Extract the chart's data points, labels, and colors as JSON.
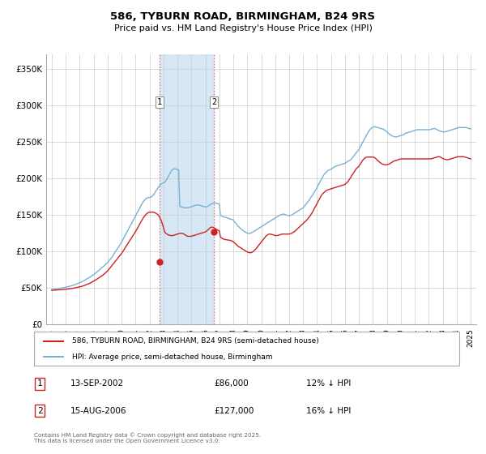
{
  "title": "586, TYBURN ROAD, BIRMINGHAM, B24 9RS",
  "subtitle": "Price paid vs. HM Land Registry's House Price Index (HPI)",
  "hpi_color": "#7ab0d4",
  "price_color": "#cc2222",
  "shaded_color": "#d6e8f5",
  "marker1_x": 2002.72,
  "marker2_x": 2006.62,
  "marker1_y": 86000,
  "marker2_y": 127000,
  "ylim": [
    0,
    370000
  ],
  "xlim": [
    1994.6,
    2025.4
  ],
  "yticks": [
    0,
    50000,
    100000,
    150000,
    200000,
    250000,
    300000,
    350000
  ],
  "ytick_labels": [
    "£0",
    "£50K",
    "£100K",
    "£150K",
    "£200K",
    "£250K",
    "£300K",
    "£350K"
  ],
  "xtick_years": [
    1995,
    1996,
    1997,
    1998,
    1999,
    2000,
    2001,
    2002,
    2003,
    2004,
    2005,
    2006,
    2007,
    2008,
    2009,
    2010,
    2011,
    2012,
    2013,
    2014,
    2015,
    2016,
    2017,
    2018,
    2019,
    2020,
    2021,
    2022,
    2023,
    2024,
    2025
  ],
  "legend_label_price": "586, TYBURN ROAD, BIRMINGHAM, B24 9RS (semi-detached house)",
  "legend_label_hpi": "HPI: Average price, semi-detached house, Birmingham",
  "footer": "Contains HM Land Registry data © Crown copyright and database right 2025.\nThis data is licensed under the Open Government Licence v3.0.",
  "table_rows": [
    {
      "label": "1",
      "date": "13-SEP-2002",
      "price": "£86,000",
      "hpi": "12% ↓ HPI"
    },
    {
      "label": "2",
      "date": "15-AUG-2006",
      "price": "£127,000",
      "hpi": "16% ↓ HPI"
    }
  ],
  "hpi_data_x": [
    1995.0,
    1995.08,
    1995.17,
    1995.25,
    1995.33,
    1995.42,
    1995.5,
    1995.58,
    1995.67,
    1995.75,
    1995.83,
    1995.92,
    1996.0,
    1996.08,
    1996.17,
    1996.25,
    1996.33,
    1996.42,
    1996.5,
    1996.58,
    1996.67,
    1996.75,
    1996.83,
    1996.92,
    1997.0,
    1997.08,
    1997.17,
    1997.25,
    1997.33,
    1997.42,
    1997.5,
    1997.58,
    1997.67,
    1997.75,
    1997.83,
    1997.92,
    1998.0,
    1998.08,
    1998.17,
    1998.25,
    1998.33,
    1998.42,
    1998.5,
    1998.58,
    1998.67,
    1998.75,
    1998.83,
    1998.92,
    1999.0,
    1999.08,
    1999.17,
    1999.25,
    1999.33,
    1999.42,
    1999.5,
    1999.58,
    1999.67,
    1999.75,
    1999.83,
    1999.92,
    2000.0,
    2000.08,
    2000.17,
    2000.25,
    2000.33,
    2000.42,
    2000.5,
    2000.58,
    2000.67,
    2000.75,
    2000.83,
    2000.92,
    2001.0,
    2001.08,
    2001.17,
    2001.25,
    2001.33,
    2001.42,
    2001.5,
    2001.58,
    2001.67,
    2001.75,
    2001.83,
    2001.92,
    2002.0,
    2002.08,
    2002.17,
    2002.25,
    2002.33,
    2002.42,
    2002.5,
    2002.58,
    2002.67,
    2002.75,
    2002.83,
    2002.92,
    2003.0,
    2003.08,
    2003.17,
    2003.25,
    2003.33,
    2003.42,
    2003.5,
    2003.58,
    2003.67,
    2003.75,
    2003.83,
    2003.92,
    2004.0,
    2004.08,
    2004.17,
    2004.25,
    2004.33,
    2004.42,
    2004.5,
    2004.58,
    2004.67,
    2004.75,
    2004.83,
    2004.92,
    2005.0,
    2005.08,
    2005.17,
    2005.25,
    2005.33,
    2005.42,
    2005.5,
    2005.58,
    2005.67,
    2005.75,
    2005.83,
    2005.92,
    2006.0,
    2006.08,
    2006.17,
    2006.25,
    2006.33,
    2006.42,
    2006.5,
    2006.58,
    2006.67,
    2006.75,
    2006.83,
    2006.92,
    2007.0,
    2007.08,
    2007.17,
    2007.25,
    2007.33,
    2007.42,
    2007.5,
    2007.58,
    2007.67,
    2007.75,
    2007.83,
    2007.92,
    2008.0,
    2008.08,
    2008.17,
    2008.25,
    2008.33,
    2008.42,
    2008.5,
    2008.58,
    2008.67,
    2008.75,
    2008.83,
    2008.92,
    2009.0,
    2009.08,
    2009.17,
    2009.25,
    2009.33,
    2009.42,
    2009.5,
    2009.58,
    2009.67,
    2009.75,
    2009.83,
    2009.92,
    2010.0,
    2010.08,
    2010.17,
    2010.25,
    2010.33,
    2010.42,
    2010.5,
    2010.58,
    2010.67,
    2010.75,
    2010.83,
    2010.92,
    2011.0,
    2011.08,
    2011.17,
    2011.25,
    2011.33,
    2011.42,
    2011.5,
    2011.58,
    2011.67,
    2011.75,
    2011.83,
    2011.92,
    2012.0,
    2012.08,
    2012.17,
    2012.25,
    2012.33,
    2012.42,
    2012.5,
    2012.58,
    2012.67,
    2012.75,
    2012.83,
    2012.92,
    2013.0,
    2013.08,
    2013.17,
    2013.25,
    2013.33,
    2013.42,
    2013.5,
    2013.58,
    2013.67,
    2013.75,
    2013.83,
    2013.92,
    2014.0,
    2014.08,
    2014.17,
    2014.25,
    2014.33,
    2014.42,
    2014.5,
    2014.58,
    2014.67,
    2014.75,
    2014.83,
    2014.92,
    2015.0,
    2015.08,
    2015.17,
    2015.25,
    2015.33,
    2015.42,
    2015.5,
    2015.58,
    2015.67,
    2015.75,
    2015.83,
    2015.92,
    2016.0,
    2016.08,
    2016.17,
    2016.25,
    2016.33,
    2016.42,
    2016.5,
    2016.58,
    2016.67,
    2016.75,
    2016.83,
    2016.92,
    2017.0,
    2017.08,
    2017.17,
    2017.25,
    2017.33,
    2017.42,
    2017.5,
    2017.58,
    2017.67,
    2017.75,
    2017.83,
    2017.92,
    2018.0,
    2018.08,
    2018.17,
    2018.25,
    2018.33,
    2018.42,
    2018.5,
    2018.58,
    2018.67,
    2018.75,
    2018.83,
    2018.92,
    2019.0,
    2019.08,
    2019.17,
    2019.25,
    2019.33,
    2019.42,
    2019.5,
    2019.58,
    2019.67,
    2019.75,
    2019.83,
    2019.92,
    2020.0,
    2020.08,
    2020.17,
    2020.25,
    2020.33,
    2020.42,
    2020.5,
    2020.58,
    2020.67,
    2020.75,
    2020.83,
    2020.92,
    2021.0,
    2021.08,
    2021.17,
    2021.25,
    2021.33,
    2021.42,
    2021.5,
    2021.58,
    2021.67,
    2021.75,
    2021.83,
    2021.92,
    2022.0,
    2022.08,
    2022.17,
    2022.25,
    2022.33,
    2022.42,
    2022.5,
    2022.58,
    2022.67,
    2022.75,
    2022.83,
    2022.92,
    2023.0,
    2023.08,
    2023.17,
    2023.25,
    2023.33,
    2023.42,
    2023.5,
    2023.58,
    2023.67,
    2023.75,
    2023.83,
    2023.92,
    2024.0,
    2024.08,
    2024.17,
    2024.25,
    2024.33,
    2024.42,
    2024.5,
    2024.58,
    2024.67,
    2024.75,
    2024.83,
    2024.92,
    2025.0
  ],
  "hpi_data_y": [
    48000,
    48200,
    48400,
    48600,
    48800,
    49000,
    49300,
    49600,
    49900,
    50200,
    50500,
    50800,
    51200,
    51600,
    52000,
    52400,
    52800,
    53300,
    53800,
    54300,
    54800,
    55400,
    56000,
    56600,
    57300,
    58000,
    58800,
    59600,
    60500,
    61400,
    62300,
    63300,
    64300,
    65300,
    66300,
    67400,
    68500,
    69700,
    71000,
    72300,
    73600,
    75000,
    76400,
    77800,
    79200,
    80600,
    82000,
    83500,
    85000,
    87000,
    89000,
    91000,
    93000,
    95500,
    98000,
    100500,
    103000,
    105500,
    108000,
    110500,
    113000,
    116000,
    119000,
    122000,
    125000,
    128000,
    131000,
    134000,
    137000,
    140000,
    143000,
    146000,
    149000,
    152000,
    155000,
    158000,
    161000,
    164000,
    167000,
    169000,
    171000,
    172500,
    173500,
    174000,
    174000,
    174500,
    175500,
    177000,
    179000,
    181500,
    184000,
    186500,
    189000,
    191000,
    192500,
    193500,
    194000,
    195000,
    197000,
    199500,
    202500,
    205500,
    208500,
    211000,
    212500,
    213500,
    213500,
    213000,
    212500,
    212000,
    162000,
    161500,
    161000,
    160500,
    160000,
    160000,
    160000,
    160200,
    160500,
    161000,
    161500,
    162000,
    162500,
    163000,
    163500,
    163800,
    163800,
    163500,
    163000,
    162500,
    162000,
    161500,
    161000,
    161500,
    162000,
    163000,
    164000,
    165000,
    166000,
    166500,
    166800,
    166500,
    166000,
    165500,
    165000,
    150000,
    149000,
    148000,
    147500,
    147000,
    146500,
    146000,
    145500,
    145000,
    144500,
    144000,
    143000,
    141000,
    139000,
    137000,
    135000,
    133500,
    132000,
    130500,
    129000,
    128000,
    127000,
    126000,
    125500,
    125000,
    125000,
    125500,
    126000,
    127000,
    128000,
    129000,
    130000,
    131000,
    132000,
    133000,
    134000,
    135000,
    136000,
    137000,
    138000,
    139000,
    140000,
    141000,
    142000,
    143000,
    144000,
    145000,
    146000,
    147000,
    148000,
    149000,
    150000,
    150500,
    151000,
    151500,
    151000,
    150500,
    150000,
    149500,
    149000,
    149500,
    150000,
    151000,
    152000,
    153000,
    154000,
    155000,
    156000,
    157000,
    158000,
    159000,
    160000,
    162000,
    164000,
    166000,
    168000,
    170000,
    172500,
    175000,
    177500,
    180000,
    182500,
    185000,
    188000,
    191000,
    194000,
    197000,
    200000,
    203000,
    205500,
    207500,
    209000,
    210500,
    211500,
    212000,
    213000,
    214000,
    215000,
    216000,
    217000,
    217500,
    218000,
    218500,
    219000,
    219500,
    220000,
    220500,
    221000,
    222000,
    223000,
    224000,
    225000,
    226000,
    228000,
    230000,
    232000,
    234000,
    236000,
    238000,
    240000,
    243000,
    246000,
    249000,
    252000,
    255000,
    258000,
    261000,
    264000,
    266000,
    268000,
    269500,
    270500,
    271000,
    271000,
    270500,
    270000,
    269500,
    269000,
    268500,
    268000,
    267500,
    266500,
    265500,
    264000,
    262500,
    261000,
    260000,
    259000,
    258000,
    257500,
    257000,
    257000,
    257500,
    258000,
    258500,
    259000,
    259500,
    260000,
    261000,
    262000,
    262500,
    263000,
    263500,
    264000,
    264500,
    265000,
    265500,
    266000,
    266500,
    267000,
    267000,
    267000,
    267000,
    267000,
    267000,
    267000,
    267000,
    267000,
    267000,
    267000,
    267000,
    267500,
    268000,
    268500,
    268500,
    268000,
    267000,
    266000,
    265500,
    265000,
    264500,
    264000,
    264000,
    264000,
    264500,
    265000,
    265500,
    266000,
    266500,
    267000,
    267500,
    268000,
    268500,
    269000,
    269500,
    270000,
    270000,
    270000,
    270000,
    270000,
    270000,
    270000,
    269500,
    269000,
    268500,
    268000
  ],
  "price_data_x": [
    1995.0,
    1995.08,
    1995.17,
    1995.25,
    1995.33,
    1995.42,
    1995.5,
    1995.58,
    1995.67,
    1995.75,
    1995.83,
    1995.92,
    1996.0,
    1996.08,
    1996.17,
    1996.25,
    1996.33,
    1996.42,
    1996.5,
    1996.58,
    1996.67,
    1996.75,
    1996.83,
    1996.92,
    1997.0,
    1997.08,
    1997.17,
    1997.25,
    1997.33,
    1997.42,
    1997.5,
    1997.58,
    1997.67,
    1997.75,
    1997.83,
    1997.92,
    1998.0,
    1998.08,
    1998.17,
    1998.25,
    1998.33,
    1998.42,
    1998.5,
    1998.58,
    1998.67,
    1998.75,
    1998.83,
    1998.92,
    1999.0,
    1999.08,
    1999.17,
    1999.25,
    1999.33,
    1999.42,
    1999.5,
    1999.58,
    1999.67,
    1999.75,
    1999.83,
    1999.92,
    2000.0,
    2000.08,
    2000.17,
    2000.25,
    2000.33,
    2000.42,
    2000.5,
    2000.58,
    2000.67,
    2000.75,
    2000.83,
    2000.92,
    2001.0,
    2001.08,
    2001.17,
    2001.25,
    2001.33,
    2001.42,
    2001.5,
    2001.58,
    2001.67,
    2001.75,
    2001.83,
    2001.92,
    2002.0,
    2002.08,
    2002.17,
    2002.25,
    2002.33,
    2002.42,
    2002.5,
    2002.58,
    2002.67,
    2002.75,
    2002.83,
    2002.92,
    2003.0,
    2003.08,
    2003.17,
    2003.25,
    2003.33,
    2003.42,
    2003.5,
    2003.58,
    2003.67,
    2003.75,
    2003.83,
    2003.92,
    2004.0,
    2004.08,
    2004.17,
    2004.25,
    2004.33,
    2004.42,
    2004.5,
    2004.58,
    2004.67,
    2004.75,
    2004.83,
    2004.92,
    2005.0,
    2005.08,
    2005.17,
    2005.25,
    2005.33,
    2005.42,
    2005.5,
    2005.58,
    2005.67,
    2005.75,
    2005.83,
    2005.92,
    2006.0,
    2006.08,
    2006.17,
    2006.25,
    2006.33,
    2006.42,
    2006.5,
    2006.58,
    2006.67,
    2006.75,
    2006.83,
    2006.92,
    2007.0,
    2007.08,
    2007.17,
    2007.25,
    2007.33,
    2007.42,
    2007.5,
    2007.58,
    2007.67,
    2007.75,
    2007.83,
    2007.92,
    2008.0,
    2008.08,
    2008.17,
    2008.25,
    2008.33,
    2008.42,
    2008.5,
    2008.58,
    2008.67,
    2008.75,
    2008.83,
    2008.92,
    2009.0,
    2009.08,
    2009.17,
    2009.25,
    2009.33,
    2009.42,
    2009.5,
    2009.58,
    2009.67,
    2009.75,
    2009.83,
    2009.92,
    2010.0,
    2010.08,
    2010.17,
    2010.25,
    2010.33,
    2010.42,
    2010.5,
    2010.58,
    2010.67,
    2010.75,
    2010.83,
    2010.92,
    2011.0,
    2011.08,
    2011.17,
    2011.25,
    2011.33,
    2011.42,
    2011.5,
    2011.58,
    2011.67,
    2011.75,
    2011.83,
    2011.92,
    2012.0,
    2012.08,
    2012.17,
    2012.25,
    2012.33,
    2012.42,
    2012.5,
    2012.58,
    2012.67,
    2012.75,
    2012.83,
    2012.92,
    2013.0,
    2013.08,
    2013.17,
    2013.25,
    2013.33,
    2013.42,
    2013.5,
    2013.58,
    2013.67,
    2013.75,
    2013.83,
    2013.92,
    2014.0,
    2014.08,
    2014.17,
    2014.25,
    2014.33,
    2014.42,
    2014.5,
    2014.58,
    2014.67,
    2014.75,
    2014.83,
    2014.92,
    2015.0,
    2015.08,
    2015.17,
    2015.25,
    2015.33,
    2015.42,
    2015.5,
    2015.58,
    2015.67,
    2015.75,
    2015.83,
    2015.92,
    2016.0,
    2016.08,
    2016.17,
    2016.25,
    2016.33,
    2016.42,
    2016.5,
    2016.58,
    2016.67,
    2016.75,
    2016.83,
    2016.92,
    2017.0,
    2017.08,
    2017.17,
    2017.25,
    2017.33,
    2017.42,
    2017.5,
    2017.58,
    2017.67,
    2017.75,
    2017.83,
    2017.92,
    2018.0,
    2018.08,
    2018.17,
    2018.25,
    2018.33,
    2018.42,
    2018.5,
    2018.58,
    2018.67,
    2018.75,
    2018.83,
    2018.92,
    2019.0,
    2019.08,
    2019.17,
    2019.25,
    2019.33,
    2019.42,
    2019.5,
    2019.58,
    2019.67,
    2019.75,
    2019.83,
    2019.92,
    2020.0,
    2020.08,
    2020.17,
    2020.25,
    2020.33,
    2020.42,
    2020.5,
    2020.58,
    2020.67,
    2020.75,
    2020.83,
    2020.92,
    2021.0,
    2021.08,
    2021.17,
    2021.25,
    2021.33,
    2021.42,
    2021.5,
    2021.58,
    2021.67,
    2021.75,
    2021.83,
    2021.92,
    2022.0,
    2022.08,
    2022.17,
    2022.25,
    2022.33,
    2022.42,
    2022.5,
    2022.58,
    2022.67,
    2022.75,
    2022.83,
    2022.92,
    2023.0,
    2023.08,
    2023.17,
    2023.25,
    2023.33,
    2023.42,
    2023.5,
    2023.58,
    2023.67,
    2023.75,
    2023.83,
    2023.92,
    2024.0,
    2024.08,
    2024.17,
    2024.25,
    2024.33,
    2024.42,
    2024.5,
    2024.58,
    2024.67,
    2024.75,
    2024.83,
    2024.92,
    2025.0
  ],
  "price_data_y": [
    47000,
    47100,
    47200,
    47300,
    47400,
    47500,
    47600,
    47700,
    47800,
    47900,
    48000,
    48200,
    48400,
    48600,
    48800,
    49000,
    49200,
    49400,
    49700,
    50000,
    50300,
    50600,
    50900,
    51200,
    51600,
    52000,
    52500,
    53000,
    53600,
    54200,
    54800,
    55500,
    56200,
    57000,
    57800,
    58600,
    59500,
    60500,
    61500,
    62500,
    63500,
    64600,
    65700,
    66800,
    68000,
    69300,
    70600,
    72000,
    73500,
    75500,
    77500,
    79500,
    81500,
    83500,
    85500,
    87500,
    89500,
    91500,
    93500,
    95500,
    97500,
    100000,
    102500,
    105000,
    107500,
    110000,
    112500,
    115000,
    117500,
    120000,
    122500,
    125000,
    127500,
    130000,
    133000,
    136000,
    139000,
    142000,
    144500,
    147000,
    149000,
    151000,
    152500,
    153500,
    154000,
    154000,
    154000,
    154000,
    153500,
    153000,
    152000,
    151000,
    149000,
    146000,
    143000,
    138000,
    133000,
    127000,
    125000,
    124000,
    123000,
    122500,
    122000,
    122000,
    122000,
    122500,
    123000,
    123500,
    124000,
    124500,
    125000,
    125000,
    125000,
    124500,
    123500,
    122500,
    121500,
    121000,
    121000,
    121000,
    121000,
    121500,
    122000,
    122500,
    123000,
    123500,
    124000,
    124500,
    125000,
    125500,
    126000,
    126500,
    127000,
    128000,
    129500,
    131000,
    132500,
    133500,
    133500,
    133000,
    132000,
    131000,
    130000,
    129000,
    128500,
    120000,
    118500,
    117500,
    117000,
    116500,
    116200,
    116000,
    115800,
    115500,
    115000,
    114500,
    113500,
    112000,
    110500,
    109000,
    107500,
    106500,
    105500,
    104500,
    103500,
    102500,
    101500,
    100500,
    99500,
    99000,
    98500,
    98500,
    99000,
    100000,
    101500,
    103000,
    105000,
    107000,
    109000,
    111000,
    113000,
    115000,
    117000,
    119000,
    121000,
    122500,
    123500,
    124000,
    124000,
    123500,
    123000,
    122500,
    122000,
    122000,
    122000,
    122500,
    123000,
    123500,
    124000,
    124000,
    124000,
    124000,
    124000,
    124000,
    124000,
    124500,
    125000,
    126000,
    127000,
    128000,
    129500,
    131000,
    132500,
    134000,
    135500,
    137000,
    138500,
    140000,
    141500,
    143000,
    145000,
    147000,
    149000,
    151500,
    154000,
    157000,
    160000,
    163000,
    166000,
    169000,
    172000,
    175000,
    177500,
    179500,
    181000,
    182500,
    183500,
    184500,
    185000,
    185500,
    186000,
    186500,
    187000,
    187500,
    188000,
    188500,
    189000,
    189500,
    190000,
    190500,
    191000,
    191500,
    192000,
    193500,
    195000,
    197000,
    199500,
    202000,
    204500,
    207000,
    209500,
    212000,
    214000,
    215500,
    217000,
    219500,
    222000,
    224500,
    226500,
    228000,
    229000,
    229500,
    229500,
    229500,
    229500,
    229500,
    229500,
    229000,
    228000,
    226500,
    225000,
    223500,
    222000,
    221000,
    220000,
    219500,
    219000,
    219000,
    219000,
    219500,
    220000,
    221000,
    222000,
    223000,
    224000,
    224500,
    225000,
    225500,
    226000,
    226500,
    227000,
    227000,
    227000,
    227000,
    227000,
    227000,
    227000,
    227000,
    227000,
    227000,
    227000,
    227000,
    227000,
    227000,
    227000,
    227000,
    227000,
    227000,
    227000,
    227000,
    227000,
    227000,
    227000,
    227000,
    227000,
    227000,
    227000,
    227500,
    228000,
    228500,
    229000,
    229500,
    230000,
    230000,
    229500,
    228500,
    227500,
    227000,
    226500,
    226000,
    226000,
    226000,
    226500,
    227000,
    227500,
    228000,
    228500,
    229000,
    229500,
    230000,
    230000,
    230000,
    230000,
    230000,
    230000,
    229500,
    229000,
    228500,
    228000,
    227500,
    227000
  ]
}
